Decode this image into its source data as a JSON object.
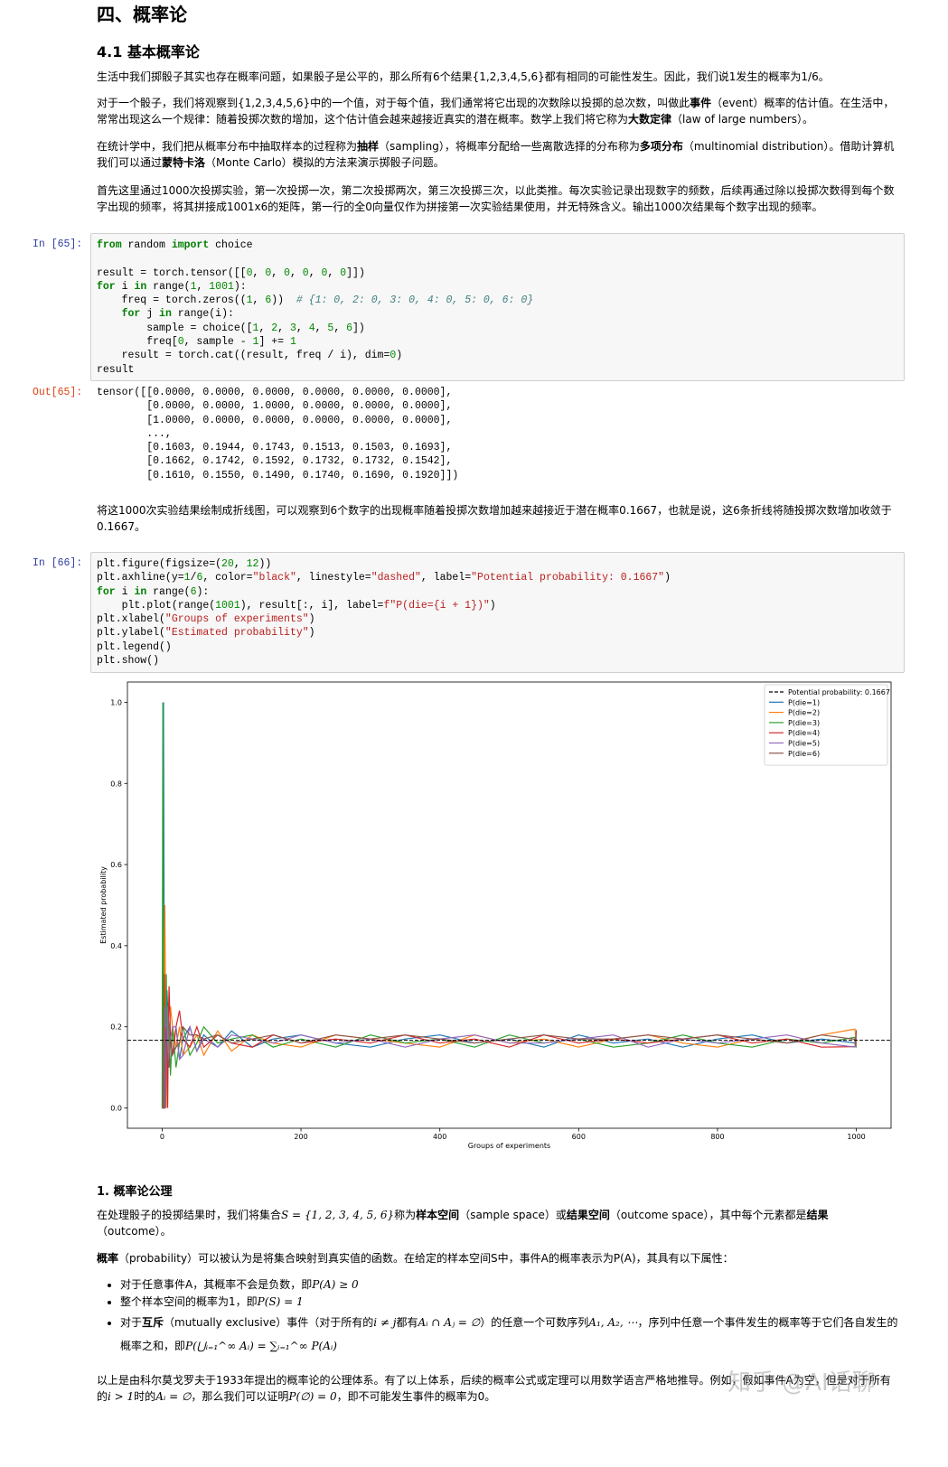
{
  "title": "四、概率论",
  "section": "4.1 基本概率论",
  "intro": [
    [
      "生活中我们掷骰子其实也存在概率问题，如果骰子是公平的，那么所有6个结果{1,2,3,4,5,6}都有相同的可能性发生。因此，我们说1发生的概率为1/6。"
    ],
    [
      "对于一个骰子，我们将观察到{1,2,3,4,5,6}中的一个值，对于每个值，我们通常将它出现的次数除以投掷的总次数，叫做此",
      {
        "text": "事件",
        "style": "bold"
      },
      "（event）概率的估计值。在生活中，常常出现这么一个规律：随着投掷次数的增加，这个估计值会越来越接近真实的潜在概率。数学上我们将它称为",
      {
        "text": "大数定律",
        "style": "bold"
      },
      "（law of large numbers）。"
    ],
    [
      "在统计学中，我们把从概率分布中抽取样本的过程称为",
      {
        "text": "抽样",
        "style": "bold"
      },
      "（sampling），将概率分配给一些离散选择的分布称为",
      {
        "text": "多项分布",
        "style": "bold"
      },
      "（multinomial distribution）。借助计算机我们可以通过",
      {
        "text": "蒙特卡洛",
        "style": "bold"
      },
      "（Monte Carlo）模拟的方法来演示掷骰子问题。"
    ],
    [
      "首先这里通过1000次投掷实验，第一次投掷一次，第二次投掷两次，第三次投掷三次，以此类推。每次实验记录出现数字的频数，后续再通过除以投掷次数得到每个数字出现的频率，将其拼接成1001x6的矩阵，第一行的全0向量仅作为拼接第一次实验结果使用，并无特殊含义。输出1000次结果每个数字出现的频率。"
    ]
  ],
  "cell1": {
    "prompt_in": "In  [65]:",
    "code": "from random import choice\n\nresult = torch.tensor([[0, 0, 0, 0, 0, 0]])\nfor i in range(1, 1001):\n    freq = torch.zeros((1, 6))  # {1: 0, 2: 0, 3: 0, 4: 0, 5: 0, 6: 0}\n    for j in range(i):\n        sample = choice([1, 2, 3, 4, 5, 6])\n        freq[0, sample - 1] += 1\n    result = torch.cat((result, freq / i), dim=0)\nresult",
    "prompt_out": "Out[65]:",
    "output": "tensor([[0.0000, 0.0000, 0.0000, 0.0000, 0.0000, 0.0000],\n        [0.0000, 0.0000, 1.0000, 0.0000, 0.0000, 0.0000],\n        [1.0000, 0.0000, 0.0000, 0.0000, 0.0000, 0.0000],\n        ...,\n        [0.1603, 0.1944, 0.1743, 0.1513, 0.1503, 0.1693],\n        [0.1662, 0.1742, 0.1592, 0.1732, 0.1732, 0.1542],\n        [0.1610, 0.1550, 0.1490, 0.1740, 0.1690, 0.1920]])"
  },
  "after_output": [
    "将这1000次实验结果绘制成折线图，可以观察到6个数字的出现概率随着投掷次数增加越来越接近于潜在概率0.1667，也就是说，这6条折线将随投掷次数增加收敛于0.1667。"
  ],
  "cell2": {
    "prompt_in": "In  [66]:",
    "code": "plt.figure(figsize=(20, 12))\nplt.axhline(y=1/6, color=\"black\", linestyle=\"dashed\", label=\"Potential probability: 0.1667\")\nfor i in range(6):\n    plt.plot(range(1001), result[:, i], label=f\"P(die={i + 1})\")\nplt.xlabel(\"Groups of experiments\")\nplt.ylabel(\"Estimated probability\")\nplt.legend()\nplt.show()"
  },
  "chart_data": {
    "type": "line",
    "x_label": "Groups of experiments",
    "y_label": "Estimated probability",
    "x": [
      0,
      1,
      2,
      3,
      4,
      5,
      6,
      7,
      8,
      9,
      10,
      12,
      15,
      20,
      25,
      30,
      40,
      50,
      60,
      80,
      100,
      130,
      160,
      200,
      250,
      300,
      350,
      400,
      450,
      500,
      550,
      600,
      650,
      700,
      750,
      800,
      850,
      900,
      950,
      998,
      999,
      1000
    ],
    "series": [
      {
        "name": "P(die=1)",
        "color": "#1f77b4",
        "values": [
          0,
          0,
          1,
          0.33,
          0,
          0.2,
          0.17,
          0.29,
          0.25,
          0.11,
          0.2,
          0.17,
          0.13,
          0.2,
          0.12,
          0.17,
          0.2,
          0.14,
          0.18,
          0.15,
          0.19,
          0.15,
          0.17,
          0.18,
          0.16,
          0.15,
          0.17,
          0.18,
          0.16,
          0.17,
          0.15,
          0.18,
          0.16,
          0.17,
          0.15,
          0.17,
          0.18,
          0.16,
          0.17,
          0.1603,
          0.1662,
          0.161
        ]
      },
      {
        "name": "P(die=2)",
        "color": "#ff7f0e",
        "values": [
          0,
          0,
          0,
          0.33,
          0.5,
          0.2,
          0,
          0.14,
          0.13,
          0.22,
          0.1,
          0.25,
          0.2,
          0.15,
          0.2,
          0.13,
          0.15,
          0.18,
          0.13,
          0.19,
          0.14,
          0.18,
          0.16,
          0.15,
          0.18,
          0.17,
          0.16,
          0.15,
          0.18,
          0.16,
          0.17,
          0.15,
          0.17,
          0.18,
          0.16,
          0.15,
          0.17,
          0.16,
          0.18,
          0.1944,
          0.1742,
          0.155
        ]
      },
      {
        "name": "P(die=3)",
        "color": "#2ca02c",
        "values": [
          0,
          1,
          0,
          0,
          0.25,
          0.2,
          0.33,
          0.14,
          0.25,
          0.22,
          0.2,
          0.08,
          0.2,
          0.1,
          0.16,
          0.2,
          0.13,
          0.16,
          0.2,
          0.16,
          0.17,
          0.18,
          0.15,
          0.17,
          0.15,
          0.18,
          0.16,
          0.17,
          0.15,
          0.18,
          0.16,
          0.17,
          0.15,
          0.16,
          0.18,
          0.16,
          0.15,
          0.17,
          0.16,
          0.1743,
          0.1592,
          0.149
        ]
      },
      {
        "name": "P(die=4)",
        "color": "#d62728",
        "values": [
          0,
          0,
          0,
          0.33,
          0,
          0.2,
          0.17,
          0.14,
          0,
          0.22,
          0.3,
          0.17,
          0.13,
          0.2,
          0.24,
          0.17,
          0.15,
          0.2,
          0.15,
          0.18,
          0.16,
          0.15,
          0.18,
          0.16,
          0.17,
          0.16,
          0.18,
          0.16,
          0.17,
          0.15,
          0.18,
          0.16,
          0.17,
          0.16,
          0.17,
          0.18,
          0.16,
          0.17,
          0.15,
          0.1513,
          0.1732,
          0.174
        ]
      },
      {
        "name": "P(die=5)",
        "color": "#9467bd",
        "values": [
          0,
          0,
          0,
          0,
          0.25,
          0,
          0.17,
          0.14,
          0.25,
          0.11,
          0.1,
          0.17,
          0.2,
          0.2,
          0.12,
          0.13,
          0.2,
          0.14,
          0.17,
          0.15,
          0.18,
          0.17,
          0.16,
          0.18,
          0.16,
          0.17,
          0.15,
          0.17,
          0.18,
          0.16,
          0.16,
          0.17,
          0.18,
          0.15,
          0.17,
          0.16,
          0.17,
          0.18,
          0.16,
          0.1503,
          0.1732,
          0.169
        ]
      },
      {
        "name": "P(die=6)",
        "color": "#8c564b",
        "values": [
          0,
          0,
          0,
          0,
          0,
          0.2,
          0.17,
          0.14,
          0.13,
          0.11,
          0.1,
          0.17,
          0.13,
          0.15,
          0.16,
          0.2,
          0.18,
          0.18,
          0.17,
          0.18,
          0.16,
          0.17,
          0.18,
          0.16,
          0.18,
          0.17,
          0.18,
          0.17,
          0.16,
          0.17,
          0.18,
          0.17,
          0.17,
          0.18,
          0.17,
          0.18,
          0.17,
          0.16,
          0.18,
          0.1693,
          0.1542,
          0.192
        ]
      }
    ],
    "hline": {
      "name": "Potential probability: 0.1667",
      "value": 0.1667,
      "color": "black",
      "style": "dashed"
    },
    "xlim": [
      -50,
      1050
    ],
    "xticks": [
      0,
      200,
      400,
      600,
      800,
      1000
    ],
    "ylim": [
      -0.05,
      1.05
    ],
    "yticks": [
      {
        "value": 0,
        "label": "0.0"
      },
      0.2,
      0.4,
      0.6,
      0.8,
      {
        "value": 1,
        "label": "1.0"
      }
    ],
    "legend": "upper right"
  },
  "subsection": "1. 概率论公理",
  "axioms_intro": [
    [
      "在处理骰子的投掷结果时，我们将集合",
      {
        "text": "S = {1, 2, 3, 4, 5, 6}",
        "style": "math"
      },
      "称为",
      {
        "text": "样本空间",
        "style": "bold"
      },
      "（sample space）或",
      {
        "text": "结果空间",
        "style": "bold"
      },
      "（outcome space），其中每个元素都是",
      {
        "text": "结果",
        "style": "bold"
      },
      "（outcome）。"
    ],
    [
      {
        "text": "概率",
        "style": "bold"
      },
      "（probability）可以被认为是将集合映射到真实值的函数。在给定的样本空间S中，事件A的概率表示为P(A)，其具有以下属性："
    ]
  ],
  "axioms": [
    [
      "对于任意事件A，其概率不会是负数，即",
      {
        "text": "P(A) ≥ 0",
        "style": "math"
      }
    ],
    [
      "整个样本空间的概率为1，即",
      {
        "text": "P(S) = 1",
        "style": "math"
      }
    ],
    [
      "对于",
      {
        "text": "互斥",
        "style": "bold"
      },
      "（mutually exclusive）事件（对于所有的",
      {
        "text": "i ≠ j",
        "style": "math"
      },
      "都有",
      {
        "text": "Aᵢ ∩ Aⱼ = ∅",
        "style": "math"
      },
      "）的任意一个可数序列",
      {
        "text": "A₁, A₂, ⋯",
        "style": "math"
      },
      "，序列中任意一个事件发生的概率等于它们各自发生的概率之和，即",
      {
        "text": "P(⋃ᵢ₌₁^∞ Aᵢ) = ∑ᵢ₌₁^∞ P(Aᵢ)",
        "style": "math"
      }
    ]
  ],
  "conclusion": [
    "以上是由科尔莫戈罗夫于1933年提出的概率论的公理体系。有了以上体系，后续的概率公式或定理可以用数学语言严格地推导。例如，假如事件A为空，但是对于所有的",
    {
      "text": "i > 1",
      "style": "math"
    },
    "时的",
    {
      "text": "Aᵢ = ∅",
      "style": "math"
    },
    "，那么我们可以证明",
    {
      "text": "P(∅) = 0",
      "style": "math"
    },
    "，即不可能发生事件的概率为0。"
  ],
  "watermark": "知乎 @AI话聊"
}
